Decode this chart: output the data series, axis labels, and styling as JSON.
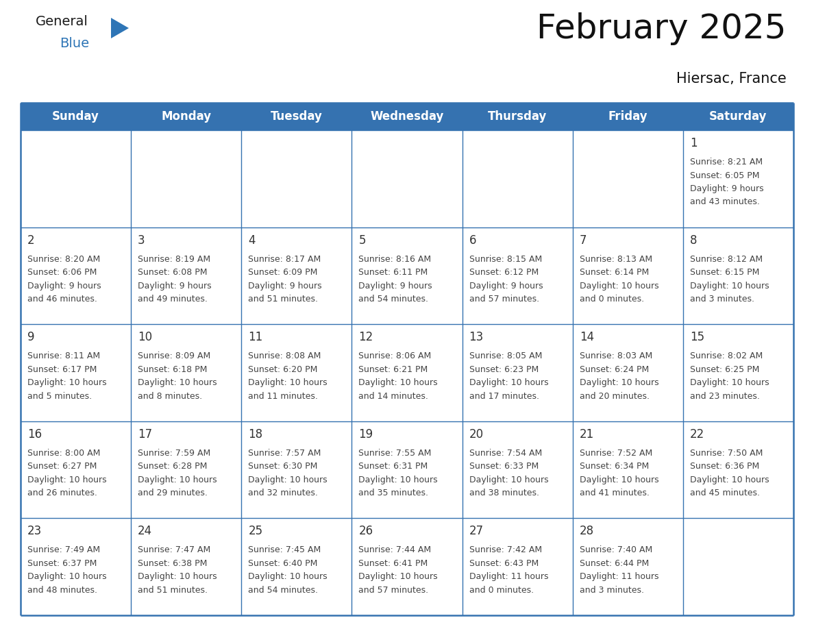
{
  "title": "February 2025",
  "subtitle": "Hiersac, France",
  "header_bg": "#3572B0",
  "header_text_color": "#FFFFFF",
  "cell_border_color": "#3572B0",
  "day_headers": [
    "Sunday",
    "Monday",
    "Tuesday",
    "Wednesday",
    "Thursday",
    "Friday",
    "Saturday"
  ],
  "days": [
    {
      "day": 1,
      "col": 6,
      "row": 0,
      "sunrise": "8:21 AM",
      "sunset": "6:05 PM",
      "daylight_line1": "Daylight: 9 hours",
      "daylight_line2": "and 43 minutes."
    },
    {
      "day": 2,
      "col": 0,
      "row": 1,
      "sunrise": "8:20 AM",
      "sunset": "6:06 PM",
      "daylight_line1": "Daylight: 9 hours",
      "daylight_line2": "and 46 minutes."
    },
    {
      "day": 3,
      "col": 1,
      "row": 1,
      "sunrise": "8:19 AM",
      "sunset": "6:08 PM",
      "daylight_line1": "Daylight: 9 hours",
      "daylight_line2": "and 49 minutes."
    },
    {
      "day": 4,
      "col": 2,
      "row": 1,
      "sunrise": "8:17 AM",
      "sunset": "6:09 PM",
      "daylight_line1": "Daylight: 9 hours",
      "daylight_line2": "and 51 minutes."
    },
    {
      "day": 5,
      "col": 3,
      "row": 1,
      "sunrise": "8:16 AM",
      "sunset": "6:11 PM",
      "daylight_line1": "Daylight: 9 hours",
      "daylight_line2": "and 54 minutes."
    },
    {
      "day": 6,
      "col": 4,
      "row": 1,
      "sunrise": "8:15 AM",
      "sunset": "6:12 PM",
      "daylight_line1": "Daylight: 9 hours",
      "daylight_line2": "and 57 minutes."
    },
    {
      "day": 7,
      "col": 5,
      "row": 1,
      "sunrise": "8:13 AM",
      "sunset": "6:14 PM",
      "daylight_line1": "Daylight: 10 hours",
      "daylight_line2": "and 0 minutes."
    },
    {
      "day": 8,
      "col": 6,
      "row": 1,
      "sunrise": "8:12 AM",
      "sunset": "6:15 PM",
      "daylight_line1": "Daylight: 10 hours",
      "daylight_line2": "and 3 minutes."
    },
    {
      "day": 9,
      "col": 0,
      "row": 2,
      "sunrise": "8:11 AM",
      "sunset": "6:17 PM",
      "daylight_line1": "Daylight: 10 hours",
      "daylight_line2": "and 5 minutes."
    },
    {
      "day": 10,
      "col": 1,
      "row": 2,
      "sunrise": "8:09 AM",
      "sunset": "6:18 PM",
      "daylight_line1": "Daylight: 10 hours",
      "daylight_line2": "and 8 minutes."
    },
    {
      "day": 11,
      "col": 2,
      "row": 2,
      "sunrise": "8:08 AM",
      "sunset": "6:20 PM",
      "daylight_line1": "Daylight: 10 hours",
      "daylight_line2": "and 11 minutes."
    },
    {
      "day": 12,
      "col": 3,
      "row": 2,
      "sunrise": "8:06 AM",
      "sunset": "6:21 PM",
      "daylight_line1": "Daylight: 10 hours",
      "daylight_line2": "and 14 minutes."
    },
    {
      "day": 13,
      "col": 4,
      "row": 2,
      "sunrise": "8:05 AM",
      "sunset": "6:23 PM",
      "daylight_line1": "Daylight: 10 hours",
      "daylight_line2": "and 17 minutes."
    },
    {
      "day": 14,
      "col": 5,
      "row": 2,
      "sunrise": "8:03 AM",
      "sunset": "6:24 PM",
      "daylight_line1": "Daylight: 10 hours",
      "daylight_line2": "and 20 minutes."
    },
    {
      "day": 15,
      "col": 6,
      "row": 2,
      "sunrise": "8:02 AM",
      "sunset": "6:25 PM",
      "daylight_line1": "Daylight: 10 hours",
      "daylight_line2": "and 23 minutes."
    },
    {
      "day": 16,
      "col": 0,
      "row": 3,
      "sunrise": "8:00 AM",
      "sunset": "6:27 PM",
      "daylight_line1": "Daylight: 10 hours",
      "daylight_line2": "and 26 minutes."
    },
    {
      "day": 17,
      "col": 1,
      "row": 3,
      "sunrise": "7:59 AM",
      "sunset": "6:28 PM",
      "daylight_line1": "Daylight: 10 hours",
      "daylight_line2": "and 29 minutes."
    },
    {
      "day": 18,
      "col": 2,
      "row": 3,
      "sunrise": "7:57 AM",
      "sunset": "6:30 PM",
      "daylight_line1": "Daylight: 10 hours",
      "daylight_line2": "and 32 minutes."
    },
    {
      "day": 19,
      "col": 3,
      "row": 3,
      "sunrise": "7:55 AM",
      "sunset": "6:31 PM",
      "daylight_line1": "Daylight: 10 hours",
      "daylight_line2": "and 35 minutes."
    },
    {
      "day": 20,
      "col": 4,
      "row": 3,
      "sunrise": "7:54 AM",
      "sunset": "6:33 PM",
      "daylight_line1": "Daylight: 10 hours",
      "daylight_line2": "and 38 minutes."
    },
    {
      "day": 21,
      "col": 5,
      "row": 3,
      "sunrise": "7:52 AM",
      "sunset": "6:34 PM",
      "daylight_line1": "Daylight: 10 hours",
      "daylight_line2": "and 41 minutes."
    },
    {
      "day": 22,
      "col": 6,
      "row": 3,
      "sunrise": "7:50 AM",
      "sunset": "6:36 PM",
      "daylight_line1": "Daylight: 10 hours",
      "daylight_line2": "and 45 minutes."
    },
    {
      "day": 23,
      "col": 0,
      "row": 4,
      "sunrise": "7:49 AM",
      "sunset": "6:37 PM",
      "daylight_line1": "Daylight: 10 hours",
      "daylight_line2": "and 48 minutes."
    },
    {
      "day": 24,
      "col": 1,
      "row": 4,
      "sunrise": "7:47 AM",
      "sunset": "6:38 PM",
      "daylight_line1": "Daylight: 10 hours",
      "daylight_line2": "and 51 minutes."
    },
    {
      "day": 25,
      "col": 2,
      "row": 4,
      "sunrise": "7:45 AM",
      "sunset": "6:40 PM",
      "daylight_line1": "Daylight: 10 hours",
      "daylight_line2": "and 54 minutes."
    },
    {
      "day": 26,
      "col": 3,
      "row": 4,
      "sunrise": "7:44 AM",
      "sunset": "6:41 PM",
      "daylight_line1": "Daylight: 10 hours",
      "daylight_line2": "and 57 minutes."
    },
    {
      "day": 27,
      "col": 4,
      "row": 4,
      "sunrise": "7:42 AM",
      "sunset": "6:43 PM",
      "daylight_line1": "Daylight: 11 hours",
      "daylight_line2": "and 0 minutes."
    },
    {
      "day": 28,
      "col": 5,
      "row": 4,
      "sunrise": "7:40 AM",
      "sunset": "6:44 PM",
      "daylight_line1": "Daylight: 11 hours",
      "daylight_line2": "and 3 minutes."
    }
  ],
  "num_rows": 5,
  "num_cols": 7,
  "logo_color_general": "#1a1a1a",
  "logo_color_blue": "#2E75B6",
  "logo_triangle_color": "#2E75B6",
  "title_fontsize": 36,
  "subtitle_fontsize": 15,
  "header_fontsize": 12,
  "day_num_fontsize": 12,
  "info_fontsize": 9
}
